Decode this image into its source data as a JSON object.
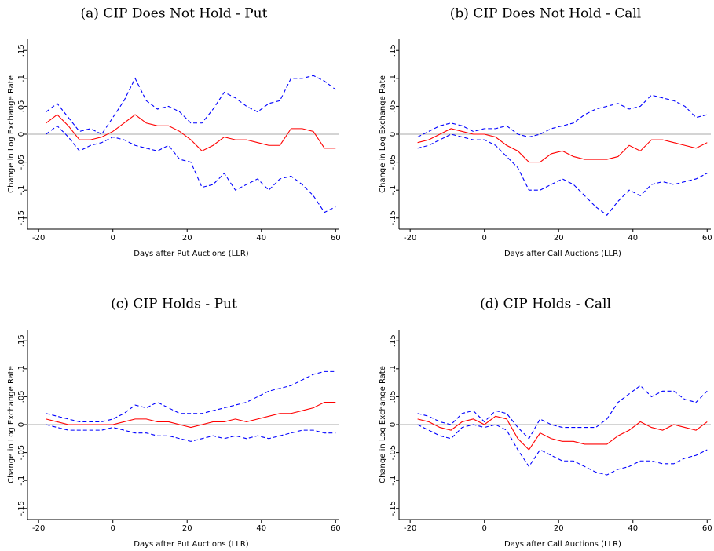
{
  "chart_data": [
    {
      "type": "line",
      "title": "(a) CIP Does Not Hold - Put",
      "xlabel": "Days after Put Auctions (LLR)",
      "ylabel": "Change in Log Exchange Rate",
      "x": [
        -18,
        -15,
        -12,
        -9,
        -6,
        -3,
        0,
        3,
        6,
        9,
        12,
        15,
        18,
        21,
        24,
        27,
        30,
        33,
        36,
        39,
        42,
        45,
        48,
        51,
        54,
        57,
        60
      ],
      "series": [
        {
          "color": "#0000ff",
          "dash": true,
          "values": [
            0.04,
            0.055,
            0.03,
            0.005,
            0.01,
            0.0,
            0.03,
            0.06,
            0.1,
            0.06,
            0.045,
            0.05,
            0.04,
            0.02,
            0.02,
            0.045,
            0.075,
            0.065,
            0.05,
            0.04,
            0.055,
            0.06,
            0.1,
            0.1,
            0.105,
            0.095,
            0.08
          ]
        },
        {
          "color": "#ff0000",
          "dash": false,
          "values": [
            0.02,
            0.035,
            0.015,
            -0.01,
            -0.01,
            -0.005,
            0.005,
            0.02,
            0.035,
            0.02,
            0.015,
            0.015,
            0.005,
            -0.01,
            -0.03,
            -0.02,
            -0.005,
            -0.01,
            -0.01,
            -0.015,
            -0.02,
            -0.02,
            0.01,
            0.01,
            0.005,
            -0.025,
            -0.025
          ]
        },
        {
          "color": "#0000ff",
          "dash": true,
          "values": [
            0.0,
            0.015,
            -0.005,
            -0.03,
            -0.02,
            -0.015,
            -0.005,
            -0.01,
            -0.02,
            -0.025,
            -0.03,
            -0.02,
            -0.045,
            -0.05,
            -0.095,
            -0.09,
            -0.07,
            -0.1,
            -0.09,
            -0.08,
            -0.1,
            -0.08,
            -0.075,
            -0.09,
            -0.11,
            -0.14,
            -0.13
          ]
        }
      ],
      "xlim": [
        -23,
        61
      ],
      "ylim": [
        -0.17,
        0.17
      ],
      "xticks": [
        -20,
        0,
        20,
        40,
        60
      ],
      "yticks": [
        {
          "value": -0.15,
          "label": "-.15"
        },
        {
          "value": -0.1,
          "label": "-.1"
        },
        {
          "value": -0.05,
          "label": "-.05"
        },
        0,
        {
          "value": 0.05,
          "label": ".05"
        },
        {
          "value": 0.1,
          "label": ".1"
        },
        {
          "value": 0.15,
          "label": ".15"
        }
      ],
      "reference_line": 0
    },
    {
      "type": "line",
      "title": "(b) CIP Does Not Hold - Call",
      "xlabel": "Days after Call Auctions (LLR)",
      "ylabel": "Change in Log Exchange Rate",
      "x": [
        -18,
        -15,
        -12,
        -9,
        -6,
        -3,
        0,
        3,
        6,
        9,
        12,
        15,
        18,
        21,
        24,
        27,
        30,
        33,
        36,
        39,
        42,
        45,
        48,
        51,
        54,
        57,
        60
      ],
      "series": [
        {
          "color": "#0000ff",
          "dash": true,
          "values": [
            -0.005,
            0.005,
            0.015,
            0.02,
            0.015,
            0.005,
            0.01,
            0.01,
            0.015,
            0.0,
            -0.005,
            0.0,
            0.01,
            0.015,
            0.02,
            0.035,
            0.045,
            0.05,
            0.055,
            0.045,
            0.05,
            0.07,
            0.065,
            0.06,
            0.05,
            0.03,
            0.035
          ]
        },
        {
          "color": "#ff0000",
          "dash": false,
          "values": [
            -0.015,
            -0.01,
            0.0,
            0.01,
            0.005,
            0.0,
            0.0,
            -0.005,
            -0.02,
            -0.03,
            -0.05,
            -0.05,
            -0.035,
            -0.03,
            -0.04,
            -0.045,
            -0.045,
            -0.045,
            -0.04,
            -0.02,
            -0.03,
            -0.01,
            -0.01,
            -0.015,
            -0.02,
            -0.025,
            -0.015
          ]
        },
        {
          "color": "#0000ff",
          "dash": true,
          "values": [
            -0.025,
            -0.02,
            -0.01,
            0.0,
            -0.005,
            -0.01,
            -0.01,
            -0.02,
            -0.04,
            -0.06,
            -0.1,
            -0.1,
            -0.09,
            -0.08,
            -0.09,
            -0.11,
            -0.13,
            -0.145,
            -0.12,
            -0.1,
            -0.11,
            -0.09,
            -0.085,
            -0.09,
            -0.085,
            -0.08,
            -0.07
          ]
        }
      ],
      "xlim": [
        -23,
        61
      ],
      "ylim": [
        -0.17,
        0.17
      ],
      "xticks": [
        -20,
        0,
        20,
        40,
        60
      ],
      "yticks": [
        {
          "value": -0.15,
          "label": "-.15"
        },
        {
          "value": -0.1,
          "label": "-.1"
        },
        {
          "value": -0.05,
          "label": "-.05"
        },
        0,
        {
          "value": 0.05,
          "label": ".05"
        },
        {
          "value": 0.1,
          "label": ".1"
        },
        {
          "value": 0.15,
          "label": ".15"
        }
      ],
      "reference_line": 0
    },
    {
      "type": "line",
      "title": "(c) CIP Holds - Put",
      "xlabel": "Days after Put Auctions (LLR)",
      "ylabel": "Change in Log Exchange Rate",
      "x": [
        -18,
        -15,
        -12,
        -9,
        -6,
        -3,
        0,
        3,
        6,
        9,
        12,
        15,
        18,
        21,
        24,
        27,
        30,
        33,
        36,
        39,
        42,
        45,
        48,
        51,
        54,
        57,
        60
      ],
      "series": [
        {
          "color": "#0000ff",
          "dash": true,
          "values": [
            0.02,
            0.015,
            0.01,
            0.005,
            0.005,
            0.005,
            0.01,
            0.02,
            0.035,
            0.03,
            0.04,
            0.03,
            0.02,
            0.02,
            0.02,
            0.025,
            0.03,
            0.035,
            0.04,
            0.05,
            0.06,
            0.065,
            0.07,
            0.08,
            0.09,
            0.095,
            0.095
          ]
        },
        {
          "color": "#ff0000",
          "dash": false,
          "values": [
            0.01,
            0.005,
            0.0,
            0.0,
            0.0,
            0.0,
            0.0,
            0.005,
            0.01,
            0.01,
            0.005,
            0.005,
            0.0,
            -0.005,
            0.0,
            0.005,
            0.005,
            0.01,
            0.005,
            0.01,
            0.015,
            0.02,
            0.02,
            0.025,
            0.03,
            0.04,
            0.04
          ]
        },
        {
          "color": "#0000ff",
          "dash": true,
          "values": [
            0.0,
            -0.005,
            -0.01,
            -0.01,
            -0.01,
            -0.01,
            -0.005,
            -0.01,
            -0.015,
            -0.015,
            -0.02,
            -0.02,
            -0.025,
            -0.03,
            -0.025,
            -0.02,
            -0.025,
            -0.02,
            -0.025,
            -0.02,
            -0.025,
            -0.02,
            -0.015,
            -0.01,
            -0.01,
            -0.015,
            -0.015
          ]
        }
      ],
      "xlim": [
        -23,
        61
      ],
      "ylim": [
        -0.17,
        0.17
      ],
      "xticks": [
        -20,
        0,
        20,
        40,
        60
      ],
      "yticks": [
        {
          "value": -0.15,
          "label": "-.15"
        },
        {
          "value": -0.1,
          "label": "-.1"
        },
        {
          "value": -0.05,
          "label": "-.05"
        },
        0,
        {
          "value": 0.05,
          "label": ".05"
        },
        {
          "value": 0.1,
          "label": ".1"
        },
        {
          "value": 0.15,
          "label": ".15"
        }
      ],
      "reference_line": 0
    },
    {
      "type": "line",
      "title": "(d) CIP Holds - Call",
      "xlabel": "Days after Call Auctions (LLR)",
      "ylabel": "Change in Log Exchange Rate",
      "x": [
        -18,
        -15,
        -12,
        -9,
        -6,
        -3,
        0,
        3,
        6,
        9,
        12,
        15,
        18,
        21,
        24,
        27,
        30,
        33,
        36,
        39,
        42,
        45,
        48,
        51,
        54,
        57,
        60
      ],
      "series": [
        {
          "color": "#0000ff",
          "dash": true,
          "values": [
            0.02,
            0.015,
            0.005,
            0.0,
            0.02,
            0.025,
            0.005,
            0.025,
            0.02,
            -0.005,
            -0.025,
            0.01,
            0.0,
            -0.005,
            -0.005,
            -0.005,
            -0.005,
            0.01,
            0.04,
            0.055,
            0.07,
            0.05,
            0.06,
            0.06,
            0.045,
            0.04,
            0.06
          ]
        },
        {
          "color": "#ff0000",
          "dash": false,
          "values": [
            0.01,
            0.005,
            -0.005,
            -0.01,
            0.005,
            0.01,
            0.0,
            0.015,
            0.01,
            -0.025,
            -0.045,
            -0.015,
            -0.025,
            -0.03,
            -0.03,
            -0.035,
            -0.035,
            -0.035,
            -0.02,
            -0.01,
            0.005,
            -0.005,
            -0.01,
            0.0,
            -0.005,
            -0.01,
            0.005
          ]
        },
        {
          "color": "#0000ff",
          "dash": true,
          "values": [
            0.0,
            -0.01,
            -0.02,
            -0.025,
            -0.005,
            0.0,
            -0.005,
            0.0,
            -0.01,
            -0.045,
            -0.075,
            -0.045,
            -0.055,
            -0.065,
            -0.065,
            -0.075,
            -0.085,
            -0.09,
            -0.08,
            -0.075,
            -0.065,
            -0.065,
            -0.07,
            -0.07,
            -0.06,
            -0.055,
            -0.045
          ]
        }
      ],
      "xlim": [
        -23,
        61
      ],
      "ylim": [
        -0.17,
        0.17
      ],
      "xticks": [
        -20,
        0,
        20,
        40,
        60
      ],
      "yticks": [
        {
          "value": -0.15,
          "label": "-.15"
        },
        {
          "value": -0.1,
          "label": "-.1"
        },
        {
          "value": -0.05,
          "label": "-.05"
        },
        0,
        {
          "value": 0.05,
          "label": ".05"
        },
        {
          "value": 0.1,
          "label": ".1"
        },
        {
          "value": 0.15,
          "label": ".15"
        }
      ],
      "reference_line": 0
    }
  ]
}
